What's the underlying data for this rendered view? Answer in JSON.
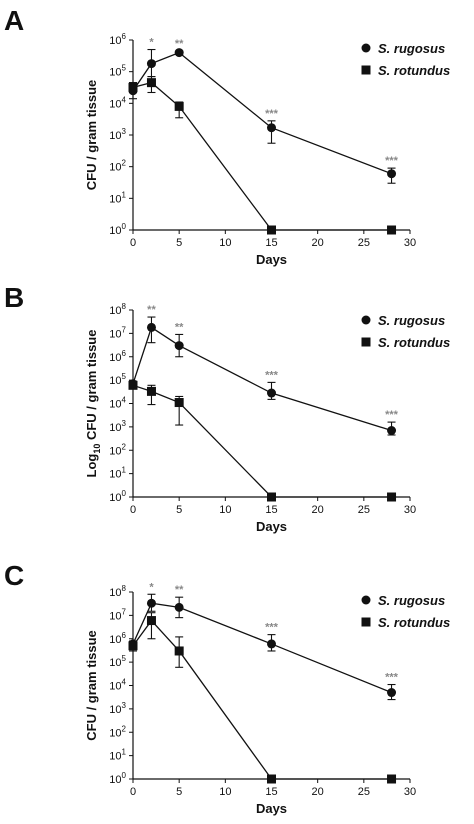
{
  "panel_letters": [
    "A",
    "B",
    "C"
  ],
  "x_ticks": [
    "0",
    "5",
    "10",
    "15",
    "20",
    "25",
    "30"
  ],
  "colors": {
    "line": "#111111",
    "marker": "#111111",
    "significance": "#888888"
  },
  "chart_data": [
    {
      "type": "line",
      "panel": "A",
      "xlabel": "Days",
      "ylabel": "CFU / gram tissue",
      "yscale": "log",
      "xlim": [
        0,
        30
      ],
      "ylim": [
        1,
        1000000
      ],
      "y_ticks": [
        {
          "base": "10",
          "exp": "0"
        },
        {
          "base": "10",
          "exp": "1"
        },
        {
          "base": "10",
          "exp": "2"
        },
        {
          "base": "10",
          "exp": "3"
        },
        {
          "base": "10",
          "exp": "4"
        },
        {
          "base": "10",
          "exp": "5"
        },
        {
          "base": "10",
          "exp": "6"
        }
      ],
      "legend_position": "top-right",
      "series": [
        {
          "name": "S. rugosus",
          "marker": "circle",
          "points": [
            {
              "x": 0,
              "y": 25000,
              "err_up": 45000,
              "err_dn": 14000
            },
            {
              "x": 2,
              "y": 180000,
              "err_up": 500000,
              "err_dn": 70000
            },
            {
              "x": 5,
              "y": 400000,
              "err_up": 450000,
              "err_dn": 350000
            },
            {
              "x": 15,
              "y": 1700,
              "err_up": 2800,
              "err_dn": 550
            },
            {
              "x": 28,
              "y": 60,
              "err_up": 90,
              "err_dn": 30
            }
          ]
        },
        {
          "name": "S. rotundus",
          "marker": "square",
          "points": [
            {
              "x": 0,
              "y": 32000,
              "err_up": 45000,
              "err_dn": 22000
            },
            {
              "x": 2,
              "y": 45000,
              "err_up": 70000,
              "err_dn": 22000
            },
            {
              "x": 5,
              "y": 8000,
              "err_up": 11000,
              "err_dn": 3500
            },
            {
              "x": 15,
              "y": 1,
              "err_up": 1,
              "err_dn": 1
            },
            {
              "x": 28,
              "y": 1,
              "err_up": 1,
              "err_dn": 1
            }
          ]
        }
      ],
      "annotations": [
        {
          "x": 2,
          "y": 500000,
          "text": "*"
        },
        {
          "x": 5,
          "y": 450000,
          "text": "**"
        },
        {
          "x": 15,
          "y": 2800,
          "text": "***"
        },
        {
          "x": 28,
          "y": 90,
          "text": "***"
        }
      ]
    },
    {
      "type": "line",
      "panel": "B",
      "xlabel": "Days",
      "ylabel": "Log10 CFU / gram tissue",
      "ylabel_parts": {
        "pre": "Log",
        "sub": "10",
        "post": " CFU / gram tissue"
      },
      "yscale": "log",
      "xlim": [
        0,
        30
      ],
      "ylim": [
        1,
        100000000
      ],
      "y_ticks": [
        {
          "base": "10",
          "exp": "0"
        },
        {
          "base": "10",
          "exp": "1"
        },
        {
          "base": "10",
          "exp": "2"
        },
        {
          "base": "10",
          "exp": "3"
        },
        {
          "base": "10",
          "exp": "4"
        },
        {
          "base": "10",
          "exp": "5"
        },
        {
          "base": "10",
          "exp": "6"
        },
        {
          "base": "10",
          "exp": "7"
        },
        {
          "base": "10",
          "exp": "8"
        }
      ],
      "legend_position": "top-right",
      "series": [
        {
          "name": "S. rugosus",
          "marker": "circle",
          "points": [
            {
              "x": 0,
              "y": 70000,
              "err_up": 90000,
              "err_dn": 50000
            },
            {
              "x": 2,
              "y": 18000000,
              "err_up": 50000000,
              "err_dn": 4000000
            },
            {
              "x": 5,
              "y": 3000000,
              "err_up": 9000000,
              "err_dn": 1000000
            },
            {
              "x": 15,
              "y": 28000,
              "err_up": 80000,
              "err_dn": 15000
            },
            {
              "x": 28,
              "y": 700,
              "err_up": 1600,
              "err_dn": 450
            }
          ]
        },
        {
          "name": "S. rotundus",
          "marker": "square",
          "points": [
            {
              "x": 0,
              "y": 60000,
              "err_up": 80000,
              "err_dn": 45000
            },
            {
              "x": 2,
              "y": 33000,
              "err_up": 60000,
              "err_dn": 9000
            },
            {
              "x": 5,
              "y": 11000,
              "err_up": 20000,
              "err_dn": 1200
            },
            {
              "x": 15,
              "y": 1,
              "err_up": 1,
              "err_dn": 1
            },
            {
              "x": 28,
              "y": 1,
              "err_up": 1,
              "err_dn": 1
            }
          ]
        }
      ],
      "annotations": [
        {
          "x": 2,
          "y": 50000000,
          "text": "**"
        },
        {
          "x": 5,
          "y": 9000000,
          "text": "**"
        },
        {
          "x": 15,
          "y": 80000,
          "text": "***"
        },
        {
          "x": 28,
          "y": 1600,
          "text": "***"
        }
      ]
    },
    {
      "type": "line",
      "panel": "C",
      "xlabel": "Days",
      "ylabel": "CFU / gram tissue",
      "yscale": "log",
      "xlim": [
        0,
        30
      ],
      "ylim": [
        1,
        100000000
      ],
      "y_ticks": [
        {
          "base": "10",
          "exp": "0"
        },
        {
          "base": "10",
          "exp": "1"
        },
        {
          "base": "10",
          "exp": "2"
        },
        {
          "base": "10",
          "exp": "3"
        },
        {
          "base": "10",
          "exp": "4"
        },
        {
          "base": "10",
          "exp": "5"
        },
        {
          "base": "10",
          "exp": "6"
        },
        {
          "base": "10",
          "exp": "7"
        },
        {
          "base": "10",
          "exp": "8"
        }
      ],
      "legend_position": "top-right",
      "series": [
        {
          "name": "S. rugosus",
          "marker": "circle",
          "points": [
            {
              "x": 0,
              "y": 600000,
              "err_up": 800000,
              "err_dn": 400000
            },
            {
              "x": 2,
              "y": 33000000,
              "err_up": 80000000,
              "err_dn": 15000000
            },
            {
              "x": 5,
              "y": 22000000,
              "err_up": 60000000,
              "err_dn": 8000000
            },
            {
              "x": 15,
              "y": 600000,
              "err_up": 1500000,
              "err_dn": 300000
            },
            {
              "x": 28,
              "y": 5000,
              "err_up": 11000,
              "err_dn": 2500
            }
          ]
        },
        {
          "name": "S. rotundus",
          "marker": "square",
          "points": [
            {
              "x": 0,
              "y": 500000,
              "err_up": 800000,
              "err_dn": 300000
            },
            {
              "x": 2,
              "y": 6000000,
              "err_up": 13000000,
              "err_dn": 1000000
            },
            {
              "x": 5,
              "y": 300000,
              "err_up": 1200000,
              "err_dn": 60000
            },
            {
              "x": 15,
              "y": 1,
              "err_up": 1,
              "err_dn": 1
            },
            {
              "x": 28,
              "y": 1,
              "err_up": 1,
              "err_dn": 1
            }
          ]
        }
      ],
      "annotations": [
        {
          "x": 2,
          "y": 80000000,
          "text": "*"
        },
        {
          "x": 5,
          "y": 60000000,
          "text": "**"
        },
        {
          "x": 15,
          "y": 1500000,
          "text": "***"
        },
        {
          "x": 28,
          "y": 11000,
          "text": "***"
        }
      ]
    }
  ]
}
